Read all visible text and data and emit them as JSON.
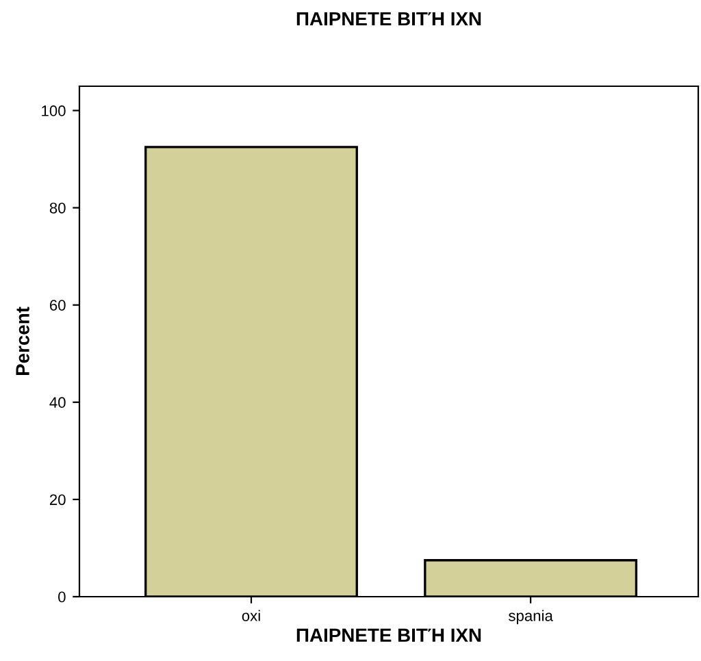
{
  "chart_data": {
    "type": "bar",
    "title": "ΠΑΙΡΝΕΤΕ ΒΙΤΉ ΙΧΝ",
    "xlabel": "ΠΑΙΡΝΕΤΕ ΒΙΤΉ ΙΧΝ",
    "ylabel": "Percent",
    "categories": [
      "oxi",
      "spania"
    ],
    "values": [
      92.5,
      7.5
    ],
    "color": "#d3d09a",
    "ylim": [
      0,
      105
    ],
    "yticks": [
      0,
      20,
      40,
      60,
      80,
      100
    ],
    "grid": false,
    "legend": false
  }
}
